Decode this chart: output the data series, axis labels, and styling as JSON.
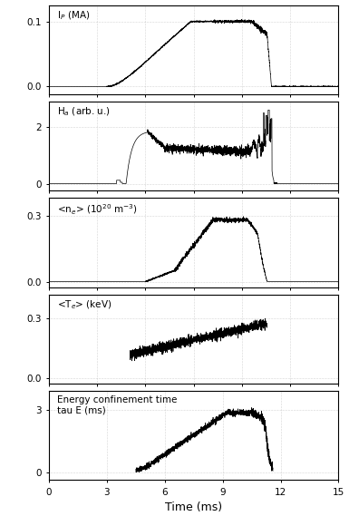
{
  "title": "",
  "xlabel": "Time (ms)",
  "xlim": [
    0,
    15
  ],
  "xticks": [
    0,
    3,
    6,
    9,
    12,
    15
  ],
  "background_color": "#ffffff",
  "line_color": "#000000",
  "grid_color": "#b0b0b0",
  "subplots": [
    {
      "ylabel": "I$_P$ (MA)",
      "ylim": [
        -0.012,
        0.125
      ],
      "yticks": [
        0.0,
        0.1
      ]
    },
    {
      "ylabel": "H$_a$ (arb. u.)",
      "ylim": [
        -0.25,
        2.9
      ],
      "yticks": [
        0,
        2
      ]
    },
    {
      "ylabel": "<n$_e$> (10$^{20}$ m$^{-3}$)",
      "ylim": [
        -0.025,
        0.38
      ],
      "yticks": [
        0.0,
        0.3
      ]
    },
    {
      "ylabel": "<T$_e$> (keV)",
      "ylim": [
        -0.025,
        0.42
      ],
      "yticks": [
        0.0,
        0.3
      ]
    },
    {
      "ylabel": "Energy confinement time\ntau E (ms)",
      "ylim": [
        -0.35,
        3.9
      ],
      "yticks": [
        0,
        3
      ]
    }
  ]
}
